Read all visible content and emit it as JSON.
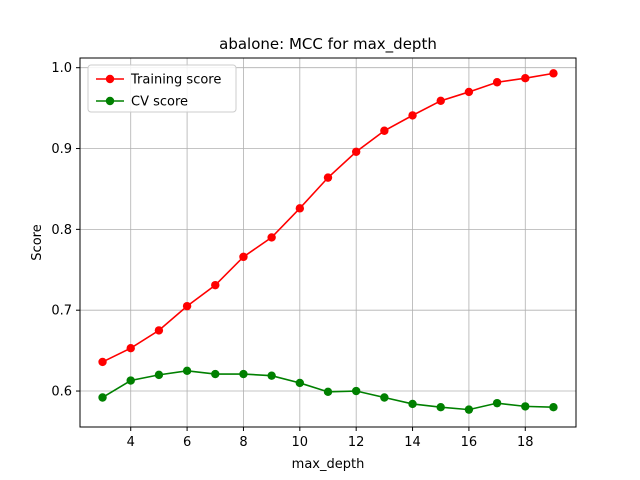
{
  "chart_data": {
    "type": "line",
    "title": "abalone: MCC for max_depth",
    "xlabel": "max_depth",
    "ylabel": "Score",
    "xlim": [
      2.2,
      19.8
    ],
    "ylim": [
      0.5555,
      1.012
    ],
    "xticks": [
      4,
      6,
      8,
      10,
      12,
      14,
      16,
      18
    ],
    "yticks": [
      0.6,
      0.7,
      0.8,
      0.9,
      1.0
    ],
    "ytick_labels": [
      "0.6",
      "0.7",
      "0.8",
      "0.9",
      "1.0"
    ],
    "grid": true,
    "legend_position": "upper-left",
    "x": [
      3,
      4,
      5,
      6,
      7,
      8,
      9,
      10,
      11,
      12,
      13,
      14,
      15,
      16,
      17,
      18,
      19
    ],
    "series": [
      {
        "name": "Training score",
        "color": "#ff0000",
        "values": [
          0.636,
          0.653,
          0.675,
          0.705,
          0.731,
          0.766,
          0.79,
          0.826,
          0.864,
          0.896,
          0.922,
          0.941,
          0.959,
          0.97,
          0.982,
          0.987,
          0.993
        ]
      },
      {
        "name": "CV score",
        "color": "#008000",
        "values": [
          0.592,
          0.613,
          0.62,
          0.625,
          0.621,
          0.621,
          0.619,
          0.61,
          0.599,
          0.6,
          0.592,
          0.584,
          0.58,
          0.577,
          0.585,
          0.581,
          0.58
        ]
      }
    ]
  }
}
